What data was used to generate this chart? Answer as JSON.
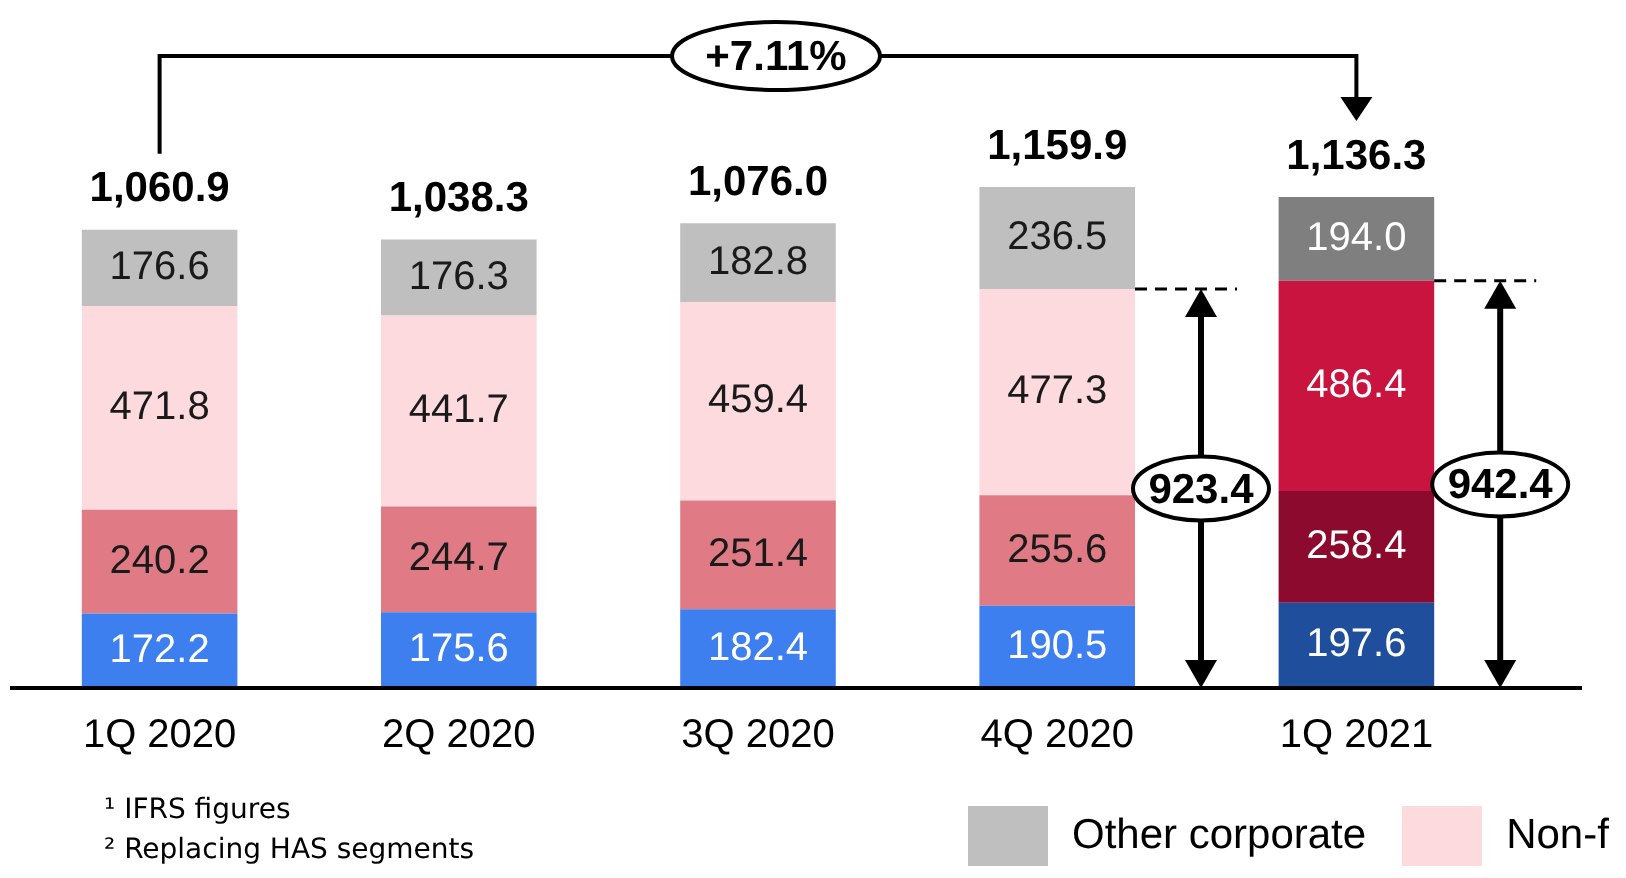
{
  "chart_data": {
    "type": "bar",
    "stacked": true,
    "data_labels": true,
    "legend": "bottom right",
    "categories": [
      "1Q 2020",
      "2Q 2020",
      "3Q 2020",
      "4Q 2020",
      "1Q 2021"
    ],
    "series": [
      {
        "colors": [
          "#3d7fef",
          "#3d7fef",
          "#3d7fef",
          "#3d7fef",
          "#1f4e9c"
        ],
        "values": [
          172.2,
          175.6,
          182.4,
          190.5,
          197.6
        ]
      },
      {
        "colors": [
          "#e07b85",
          "#e07b85",
          "#e07b85",
          "#e07b85",
          "#8b0a2e"
        ],
        "values": [
          240.2,
          244.7,
          251.4,
          255.6,
          258.4
        ]
      },
      {
        "name": "Non-f",
        "color": "#fcdadd",
        "colors": [
          "#fcdadd",
          "#fcdadd",
          "#fcdadd",
          "#fcdadd",
          "#c8143f"
        ],
        "values": [
          471.8,
          441.7,
          459.4,
          477.3,
          486.4
        ]
      },
      {
        "name": "Other corporate",
        "color": "#bfbfbf",
        "colors": [
          "#bfbfbf",
          "#bfbfbf",
          "#bfbfbf",
          "#bfbfbf",
          "#7f7f7f"
        ],
        "values": [
          176.6,
          176.3,
          182.8,
          236.5,
          194.0
        ],
        "value_labels": [
          "176.6",
          "176.3",
          "182.8",
          "236.5",
          "194.0"
        ]
      }
    ],
    "totals": [
      "1,060.9",
      "1,038.3",
      "1,076.0",
      "1,159.9",
      "1,136.3"
    ],
    "annotations": [
      "+7.11%",
      "923.4",
      "942.4",
      "¹ IFRS figures",
      "² Replacing HAS segments"
    ]
  }
}
